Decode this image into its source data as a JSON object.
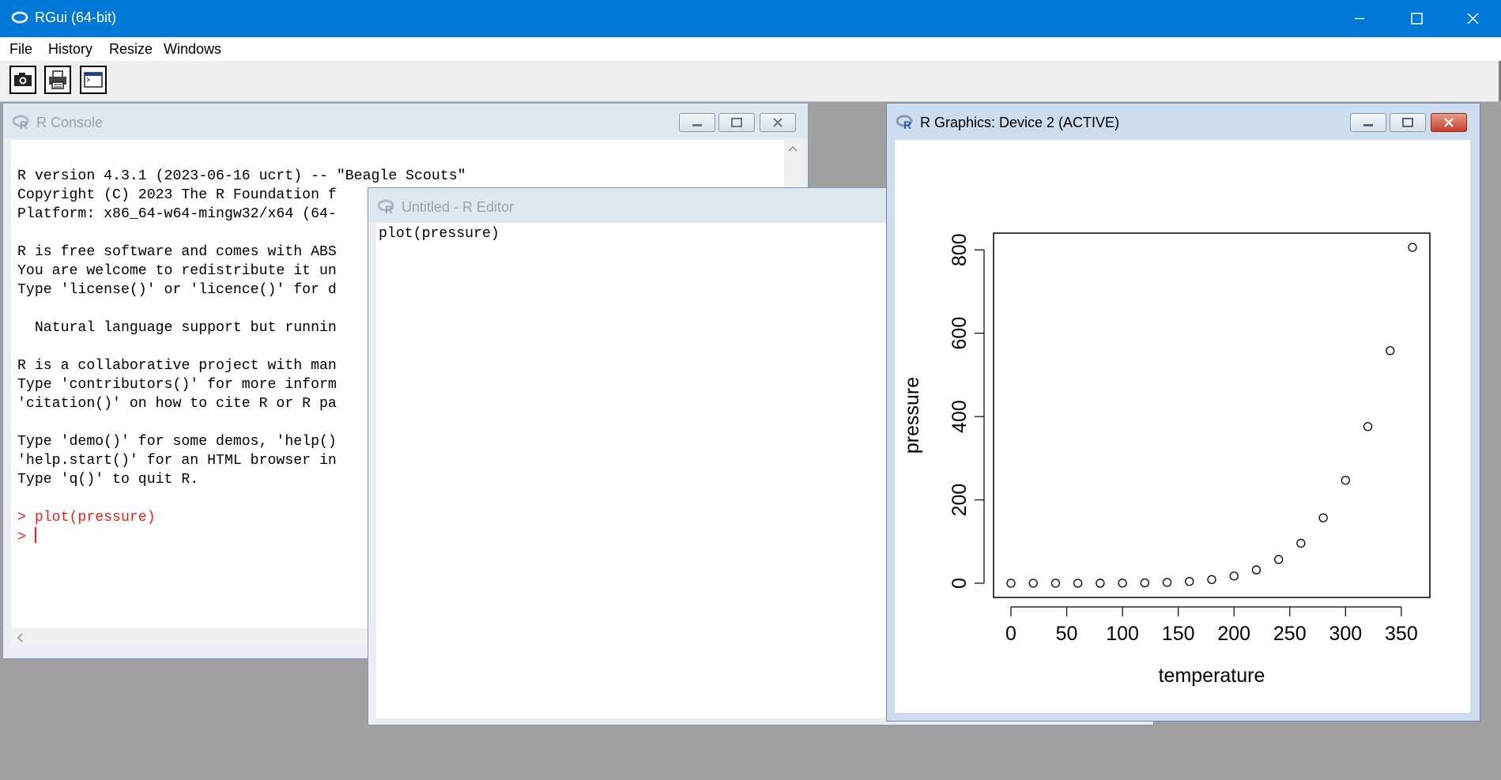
{
  "app": {
    "title": "RGui (64-bit)",
    "icon": "r-logo-icon"
  },
  "menu": [
    "File",
    "History",
    "Resize",
    "Windows"
  ],
  "toolbar": {
    "buttons": [
      "camera-icon",
      "printer-icon",
      "console-window-icon"
    ]
  },
  "console": {
    "title": "R Console",
    "lines": [
      "R version 4.3.1 (2023-06-16 ucrt) -- \"Beagle Scouts\"",
      "Copyright (C) 2023 The R Foundation f",
      "Platform: x86_64-w64-mingw32/x64 (64-",
      "",
      "R is free software and comes with ABS",
      "You are welcome to redistribute it un",
      "Type 'license()' or 'licence()' for d",
      "",
      "  Natural language support but runnin",
      "",
      "R is a collaborative project with man",
      "Type 'contributors()' for more inform",
      "'citation()' on how to cite R or R pa",
      "",
      "Type 'demo()' for some demos, 'help()",
      "'help.start()' for an HTML browser in",
      "Type 'q()' to quit R."
    ],
    "history_cmd": "> plot(pressure)",
    "prompt": ">"
  },
  "editor": {
    "title": "Untitled - R Editor",
    "content": "plot(pressure)"
  },
  "graphics": {
    "title": "R Graphics: Device 2 (ACTIVE)"
  },
  "colors": {
    "titlebar": "#0078d7",
    "prompt_red": "#e8231b",
    "mdi_background": "#a0a0a0"
  },
  "chart_data": {
    "type": "scatter",
    "title": "",
    "xlabel": "temperature",
    "ylabel": "pressure",
    "xlim": [
      0,
      360
    ],
    "ylim": [
      0,
      806
    ],
    "xticks": [
      0,
      50,
      100,
      150,
      200,
      250,
      300,
      350
    ],
    "yticks": [
      0,
      200,
      400,
      600,
      800
    ],
    "x": [
      0,
      20,
      40,
      60,
      80,
      100,
      120,
      140,
      160,
      180,
      200,
      220,
      240,
      260,
      280,
      300,
      320,
      340,
      360
    ],
    "y": [
      0.0002,
      0.0012,
      0.006,
      0.03,
      0.09,
      0.27,
      0.75,
      1.85,
      4.2,
      8.8,
      17.3,
      32.1,
      57.0,
      96.0,
      157.0,
      247.0,
      376.0,
      558.0,
      806.0
    ],
    "marker": "open-circle",
    "grid": false
  }
}
